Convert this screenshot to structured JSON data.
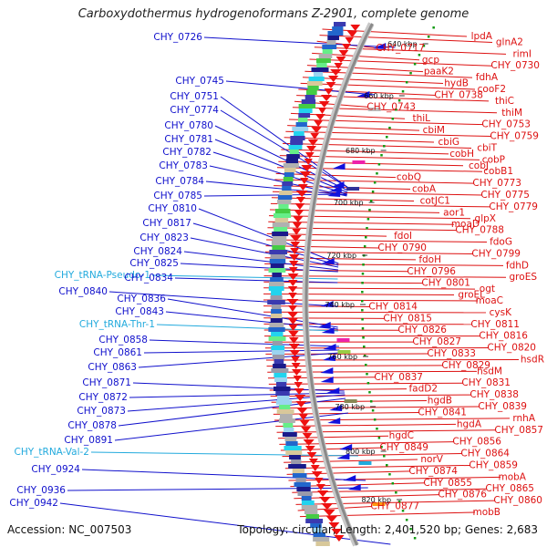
{
  "title": "Carboxydothermus hydrogenoformans Z-2901, complete genome",
  "footer": {
    "accession": "Accession: NC_007503",
    "topology": "Topology: circular; Length: 2,401,520 bp; Genes: 2,683"
  },
  "colors": {
    "left_label": "#1010cc",
    "trna_label": "#22aadd",
    "right_label": "#dd1111",
    "tick_dot": "#119911",
    "backbone": "#999999",
    "red_genes": "#ee1111"
  },
  "ticks": [
    "640 kbp",
    "660 kbp",
    "680 kbp",
    "700 kbp",
    "720 kbp",
    "740 kbp",
    "760 kbp",
    "780 kbp",
    "800 kbp",
    "820 kbp"
  ],
  "left_labels": [
    {
      "text": "CHY_0726",
      "kind": "gene"
    },
    {
      "text": "CHY_0745",
      "kind": "gene"
    },
    {
      "text": "CHY_0751",
      "kind": "gene"
    },
    {
      "text": "CHY_0774",
      "kind": "gene"
    },
    {
      "text": "CHY_0780",
      "kind": "gene"
    },
    {
      "text": "CHY_0781",
      "kind": "gene"
    },
    {
      "text": "CHY_0782",
      "kind": "gene"
    },
    {
      "text": "CHY_0783",
      "kind": "gene"
    },
    {
      "text": "CHY_0784",
      "kind": "gene"
    },
    {
      "text": "CHY_0785",
      "kind": "gene"
    },
    {
      "text": "CHY_0810",
      "kind": "gene"
    },
    {
      "text": "CHY_0817",
      "kind": "gene"
    },
    {
      "text": "CHY_0823",
      "kind": "gene"
    },
    {
      "text": "CHY_0824",
      "kind": "gene"
    },
    {
      "text": "CHY_0825",
      "kind": "gene"
    },
    {
      "text": "CHY_tRNA-Pseudo-1",
      "kind": "trna"
    },
    {
      "text": "CHY_0834",
      "kind": "gene"
    },
    {
      "text": "CHY_0840",
      "kind": "gene"
    },
    {
      "text": "CHY_0836",
      "kind": "gene"
    },
    {
      "text": "CHY_0843",
      "kind": "gene"
    },
    {
      "text": "CHY_tRNA-Thr-1",
      "kind": "trna"
    },
    {
      "text": "CHY_0858",
      "kind": "gene"
    },
    {
      "text": "CHY_0861",
      "kind": "gene"
    },
    {
      "text": "CHY_0863",
      "kind": "gene"
    },
    {
      "text": "CHY_0871",
      "kind": "gene"
    },
    {
      "text": "CHY_0872",
      "kind": "gene"
    },
    {
      "text": "CHY_0873",
      "kind": "gene"
    },
    {
      "text": "CHY_0878",
      "kind": "gene"
    },
    {
      "text": "CHY_0891",
      "kind": "gene"
    },
    {
      "text": "CHY_tRNA-Val-2",
      "kind": "trna"
    },
    {
      "text": "CHY_0924",
      "kind": "gene"
    },
    {
      "text": "CHY_0936",
      "kind": "gene"
    },
    {
      "text": "CHY_0942",
      "kind": "gene"
    }
  ],
  "right_labels": [
    "lpdA",
    "glnA2",
    "CHY_0717",
    "rimI",
    "gcp",
    "CHY_0730",
    "paaK2",
    "fdhA",
    "hydB",
    "cooF2",
    "CHY_0738",
    "thiC",
    "CHY_0743",
    "thiM",
    "thiL",
    "CHY_0753",
    "cbiM",
    "CHY_0759",
    "cbiG",
    "cbiT",
    "cobH",
    "cobP",
    "cobJ",
    "cobB1",
    "cobQ",
    "CHY_0773",
    "cobA",
    "CHY_0775",
    "cotJC1",
    "CHY_0779",
    "aor1",
    "glpX",
    "moaD",
    "CHY_0788",
    "fdoI",
    "fdoG",
    "CHY_0790",
    "CHY_0799",
    "fdoH",
    "fdhD",
    "CHY_0796",
    "groES",
    "CHY_0801",
    "ogt",
    "groEL",
    "moaC",
    "CHY_0814",
    "cysK",
    "CHY_0815",
    "CHY_0811",
    "CHY_0826",
    "CHY_0816",
    "CHY_0827",
    "CHY_0820",
    "CHY_0833",
    "hsdR",
    "CHY_0829",
    "hsdM",
    "CHY_0837",
    "CHY_0831",
    "fadD2",
    "CHY_0838",
    "hgdB",
    "CHY_0839",
    "CHY_0841",
    "rnhA",
    "hgdA",
    "CHY_0857",
    "hgdC",
    "CHY_0856",
    "CHY_0849",
    "CHY_0864",
    "norV",
    "CHY_0859",
    "CHY_0874",
    "mobA",
    "CHY_0855",
    "CHY_0865",
    "CHY_0876",
    "CHY_0860",
    "CHY_0877",
    "mobB"
  ]
}
